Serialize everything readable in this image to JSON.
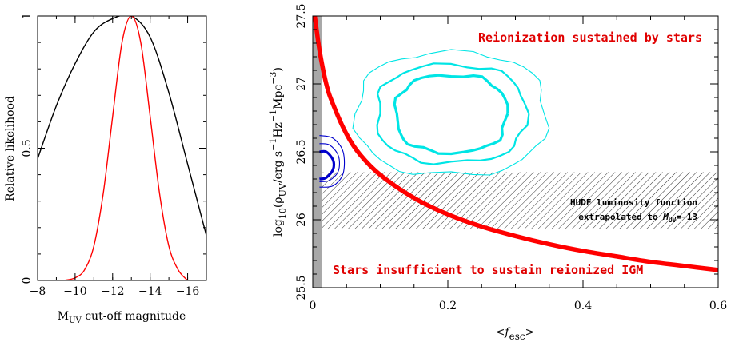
{
  "chart_data": [
    {
      "type": "line",
      "xlabel": "M_UV cut-off magnitude",
      "ylabel": "Relative likelihood",
      "xlim": [
        -8,
        -17
      ],
      "ylim": [
        0,
        1
      ],
      "xticks": [
        -8,
        -10,
        -12,
        -14,
        -16
      ],
      "xtick_labels": [
        "−8",
        "−10",
        "−12",
        "−14",
        "−16"
      ],
      "yticks": [
        0,
        0.5,
        1
      ],
      "ytick_labels": [
        "0",
        "0.5",
        "1"
      ],
      "grid": false,
      "series": [
        {
          "color": "#000000",
          "x": [
            -8,
            -9,
            -10,
            -11,
            -12,
            -13,
            -14,
            -15,
            -16,
            -17
          ],
          "values": [
            0.46,
            0.66,
            0.82,
            0.94,
            0.99,
            1.0,
            0.92,
            0.71,
            0.44,
            0.17
          ]
        },
        {
          "color": "#ff0000",
          "x": [
            -9.4,
            -10,
            -10.5,
            -11,
            -11.5,
            -12,
            -12.5,
            -13,
            -13.5,
            -14,
            -14.5,
            -15,
            -15.5,
            -16
          ],
          "values": [
            0.0,
            0.01,
            0.04,
            0.13,
            0.33,
            0.62,
            0.9,
            1.0,
            0.9,
            0.62,
            0.33,
            0.13,
            0.04,
            0.0
          ]
        }
      ]
    },
    {
      "type": "line",
      "xlabel": "<f_esc>",
      "ylabel": "log10(ρ_UV/erg s−1Hz−1Mpc−3)",
      "xlim": [
        0,
        0.6
      ],
      "ylim": [
        25.5,
        27.5
      ],
      "xticks": [
        0,
        0.2,
        0.4,
        0.6
      ],
      "xtick_labels": [
        "0",
        "0.2",
        "0.4",
        "0.6"
      ],
      "yticks": [
        25.5,
        26,
        26.5,
        27,
        27.5
      ],
      "ytick_labels": [
        "25.5",
        "26",
        "26.5",
        "27",
        "27.5"
      ],
      "grid": false,
      "curve": {
        "color": "#ff0000",
        "x": [
          0.003,
          0.01,
          0.02,
          0.03,
          0.05,
          0.07,
          0.1,
          0.15,
          0.2,
          0.25,
          0.3,
          0.35,
          0.4,
          0.45,
          0.5,
          0.55,
          0.6
        ],
        "y": [
          27.5,
          27.25,
          27.0,
          26.85,
          26.63,
          26.48,
          26.33,
          26.16,
          26.04,
          25.95,
          25.88,
          25.82,
          25.77,
          25.73,
          25.69,
          25.66,
          25.63
        ]
      },
      "shaded_band": {
        "x": [
          0,
          0.6
        ],
        "y": [
          25.93,
          26.35
        ],
        "pattern": "diagonal-hatch"
      },
      "gray_strip": {
        "x": [
          0,
          0.013
        ],
        "color": "#a8a8a8"
      },
      "contours_cyan": {
        "color": "#00e5e5",
        "center": [
          0.205,
          26.78
        ],
        "levels": [
          {
            "rx": 0.082,
            "ry": 0.285,
            "weight": "thick"
          },
          {
            "rx": 0.11,
            "ry": 0.36,
            "weight": "medium"
          },
          {
            "rx": 0.14,
            "ry": 0.45,
            "weight": "thin"
          }
        ]
      },
      "contours_blue": {
        "color": "#0000cc",
        "arcs": [
          {
            "x": [
              0.01,
              0.03,
              0.045,
              0.045,
              0.03,
              0.01
            ],
            "y": [
              26.62,
              26.6,
              26.5,
              26.34,
              26.25,
              26.24
            ],
            "weight": "thin"
          },
          {
            "x": [
              0.01,
              0.025,
              0.038,
              0.038,
              0.025,
              0.01
            ],
            "y": [
              26.56,
              26.55,
              26.47,
              26.36,
              26.29,
              26.28
            ],
            "weight": "thin"
          },
          {
            "x": [
              0.01,
              0.02,
              0.03,
              0.03,
              0.02,
              0.01
            ],
            "y": [
              26.5,
              26.5,
              26.44,
              26.37,
              26.31,
              26.3
            ],
            "weight": "thick"
          }
        ]
      },
      "annotations": {
        "top": "Reionization sustained by stars",
        "bottom": "Stars insufficient to sustain reionized IGM",
        "hudf_line1": "HUDF luminosity function",
        "hudf_line2": "extrapolated to M_UV=−13"
      }
    }
  ],
  "labels": {
    "left_xlabel_main": "M",
    "left_xlabel_sub": "UV",
    "left_xlabel_rest": " cut-off magnitude",
    "left_ylabel": "Relative likelihood",
    "right_xlabel_open": "<",
    "right_xlabel_f": "f",
    "right_xlabel_sub": "esc",
    "right_xlabel_close": ">",
    "right_ylabel_log": "log",
    "right_ylabel_10": "10",
    "right_ylabel_open": "(ρ",
    "right_ylabel_uv": "UV",
    "right_ylabel_erg": "/erg s",
    "right_ylabel_m1": "−1",
    "right_ylabel_hz": "Hz",
    "right_ylabel_m1b": "−1",
    "right_ylabel_mpc": "Mpc",
    "right_ylabel_m3": "−3",
    "right_ylabel_close": ")",
    "hudf_muv_m": "M",
    "hudf_muv_sub": "UV",
    "hudf_muv_val": "=−13",
    "hudf_line2_prefix": "extrapolated to "
  }
}
